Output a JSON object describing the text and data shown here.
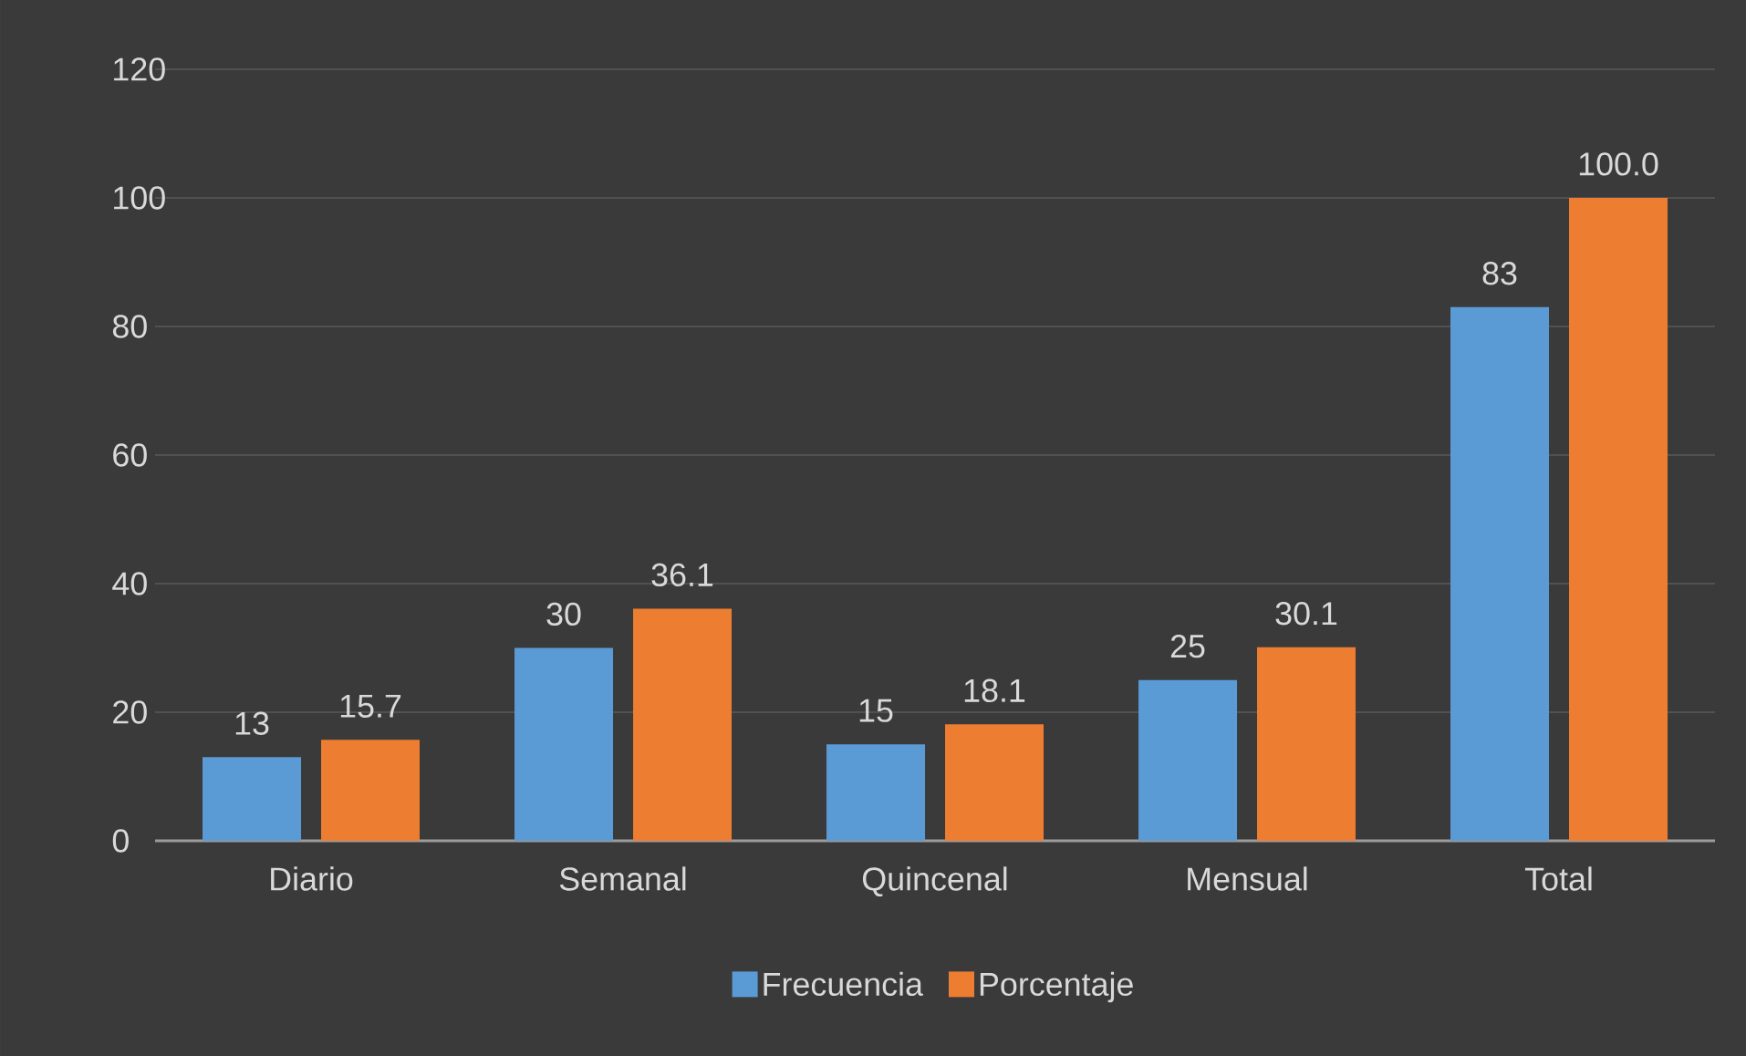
{
  "chart_data": {
    "type": "bar",
    "categories": [
      "Diario",
      "Semanal",
      "Quincenal",
      "Mensual",
      "Total"
    ],
    "series": [
      {
        "name": "Frecuencia",
        "color": "#5b9bd5",
        "values": [
          13,
          30,
          15,
          25,
          83
        ],
        "value_labels": [
          "13",
          "30",
          "15",
          "25",
          "83"
        ]
      },
      {
        "name": "Porcentaje",
        "color": "#ed7d31",
        "values": [
          15.7,
          36.1,
          18.1,
          30.1,
          100.0
        ],
        "value_labels": [
          "15.7",
          "36.1",
          "18.1",
          "30.1",
          "100.0"
        ]
      }
    ],
    "ylim": [
      0,
      120
    ],
    "yticks": [
      0,
      20,
      40,
      60,
      80,
      100,
      120
    ],
    "grid": "y",
    "legend": "bottom"
  }
}
